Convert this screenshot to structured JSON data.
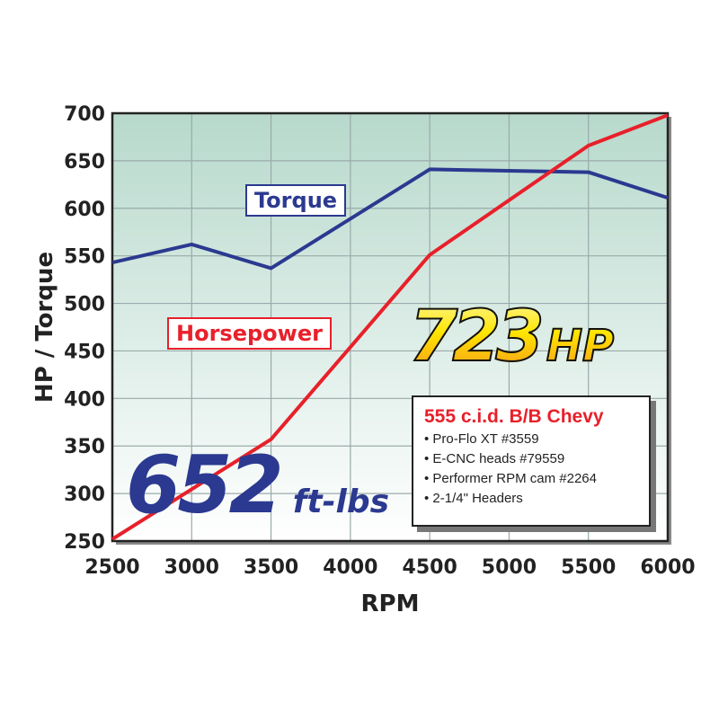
{
  "chart_data": {
    "type": "line",
    "xlabel": "RPM",
    "ylabel": "HP / Torque",
    "x": [
      2500,
      3000,
      3500,
      4000,
      4500,
      5000,
      5500,
      6000
    ],
    "xlim": [
      2500,
      6000
    ],
    "ylim": [
      250,
      700
    ],
    "x_ticks": [
      "2500",
      "3000",
      "3500",
      "4000",
      "4500",
      "5000",
      "5500",
      "6000"
    ],
    "y_ticks": [
      "250",
      "300",
      "350",
      "400",
      "450",
      "500",
      "550",
      "600",
      "650",
      "700"
    ],
    "grid": true,
    "series": [
      {
        "name": "Torque",
        "color": "#2b3990",
        "x": [
          2500,
          3000,
          3500,
          4500,
          5500,
          6000
        ],
        "values": [
          543,
          562,
          537,
          641,
          638,
          611
        ]
      },
      {
        "name": "Horsepower",
        "color": "#e8202a",
        "x": [
          2500,
          3500,
          4500,
          5500,
          6000
        ],
        "values": [
          252,
          357,
          551,
          666,
          698
        ]
      }
    ],
    "annotations": {
      "peak_hp": {
        "value": "723",
        "unit": "HP"
      },
      "peak_torque": {
        "value": "652",
        "unit": "ft-lbs"
      }
    },
    "spec_box": {
      "title": "555 c.i.d. B/B Chevy",
      "items": [
        "Pro-Flo XT #3559",
        "E-CNC heads #79559",
        "Performer RPM cam #2264",
        "2-1/4\" Headers"
      ]
    },
    "background_gradient": [
      "#b7d9cc",
      "#ffffff"
    ]
  }
}
